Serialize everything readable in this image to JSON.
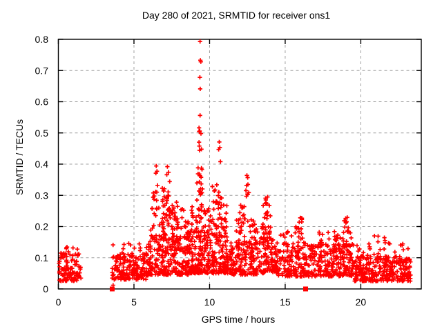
{
  "figure": {
    "background": "#ffffff"
  },
  "chart_data": {
    "type": "scatter",
    "title": "Day 280 of 2021, SRMTID for receiver ons1",
    "xlabel": "GPS time / hours",
    "ylabel": "SRMTID / TECUs",
    "xlim": [
      0,
      24
    ],
    "ylim": [
      0,
      0.8
    ],
    "xticks": [
      0,
      5,
      10,
      15,
      20
    ],
    "xtick_labels": [
      "0",
      "5",
      "10",
      "15",
      "20"
    ],
    "yticks": [
      0,
      0.1,
      0.2,
      0.3,
      0.4,
      0.5,
      0.6,
      0.7,
      0.8
    ],
    "ytick_labels": [
      "0",
      "0.1",
      "0.2",
      "0.3",
      "0.4",
      "0.5",
      "0.6",
      "0.7",
      "0.8"
    ],
    "grid": true,
    "grid_style": "dashed",
    "legend": "none",
    "marker": "plus",
    "marker_color": "#ff0000",
    "grid_color": "#a0a0a0",
    "axis_color": "#000000",
    "data_x_range": [
      0,
      23.3
    ],
    "data_gap_x": [
      1.55,
      3.55
    ],
    "notable_points": [
      [
        9.37,
        0.793
      ],
      [
        9.39,
        0.733
      ],
      [
        9.42,
        0.728
      ],
      [
        9.36,
        0.678
      ],
      [
        9.38,
        0.641
      ],
      [
        9.37,
        0.556
      ],
      [
        9.35,
        0.506
      ],
      [
        9.43,
        0.498
      ],
      [
        9.32,
        0.458
      ],
      [
        10.64,
        0.471
      ],
      [
        10.68,
        0.453
      ],
      [
        10.6,
        0.447
      ],
      [
        10.72,
        0.408
      ],
      [
        6.47,
        0.394
      ],
      [
        6.52,
        0.377
      ],
      [
        6.45,
        0.371
      ],
      [
        6.56,
        0.332
      ],
      [
        7.21,
        0.392
      ],
      [
        7.29,
        0.374
      ],
      [
        7.17,
        0.366
      ],
      [
        7.36,
        0.344
      ],
      [
        7.26,
        0.311
      ],
      [
        12.47,
        0.364
      ],
      [
        12.52,
        0.357
      ],
      [
        12.44,
        0.331
      ],
      [
        12.5,
        0.304
      ],
      [
        13.72,
        0.285
      ],
      [
        13.78,
        0.272
      ],
      [
        3.62,
        0.012
      ],
      [
        16.0,
        0.228
      ],
      [
        15.93,
        0.214
      ],
      [
        19.0,
        0.226
      ],
      [
        18.94,
        0.198
      ],
      [
        21.6,
        0.155
      ]
    ],
    "zero_square_markers_x": [
      3.56,
      16.35
    ],
    "dense_bands": [
      {
        "x0": 0.02,
        "x1": 1.55,
        "y0": 0.025,
        "y1": 0.115,
        "n": 110,
        "bias": 1.6
      },
      {
        "x0": 0.15,
        "x1": 1.35,
        "y0": 0.105,
        "y1": 0.138,
        "n": 8,
        "bias": 1.0
      },
      {
        "x0": 3.55,
        "x1": 5.95,
        "y0": 0.03,
        "y1": 0.115,
        "n": 170,
        "bias": 1.5
      },
      {
        "x0": 3.6,
        "x1": 5.85,
        "y0": 0.105,
        "y1": 0.148,
        "n": 14,
        "bias": 1.0
      },
      {
        "x0": 5.95,
        "x1": 8.65,
        "y0": 0.045,
        "y1": 0.175,
        "n": 240,
        "bias": 1.7
      },
      {
        "x0": 6.1,
        "x1": 8.6,
        "y0": 0.16,
        "y1": 0.26,
        "n": 60,
        "bias": 1.3
      },
      {
        "x0": 6.15,
        "x1": 6.6,
        "y0": 0.25,
        "y1": 0.315,
        "n": 10,
        "bias": 1.0
      },
      {
        "x0": 6.85,
        "x1": 7.35,
        "y0": 0.2,
        "y1": 0.335,
        "n": 22,
        "bias": 1.0
      },
      {
        "x0": 7.5,
        "x1": 7.9,
        "y0": 0.15,
        "y1": 0.3,
        "n": 20,
        "bias": 1.2
      },
      {
        "x0": 8.3,
        "x1": 8.65,
        "y0": 0.13,
        "y1": 0.22,
        "n": 14,
        "bias": 1.2
      },
      {
        "x0": 8.65,
        "x1": 11.25,
        "y0": 0.05,
        "y1": 0.19,
        "n": 280,
        "bias": 1.6
      },
      {
        "x0": 8.8,
        "x1": 11.15,
        "y0": 0.18,
        "y1": 0.27,
        "n": 60,
        "bias": 1.3
      },
      {
        "x0": 9.15,
        "x1": 9.55,
        "y0": 0.24,
        "y1": 0.4,
        "n": 24,
        "bias": 1.0
      },
      {
        "x0": 9.3,
        "x1": 9.5,
        "y0": 0.4,
        "y1": 0.52,
        "n": 5,
        "bias": 1.0
      },
      {
        "x0": 10.15,
        "x1": 10.5,
        "y0": 0.27,
        "y1": 0.335,
        "n": 9,
        "bias": 1.0
      },
      {
        "x0": 10.55,
        "x1": 10.8,
        "y0": 0.21,
        "y1": 0.33,
        "n": 10,
        "bias": 1.0
      },
      {
        "x0": 11.3,
        "x1": 13.25,
        "y0": 0.045,
        "y1": 0.15,
        "n": 160,
        "bias": 1.5
      },
      {
        "x0": 11.75,
        "x1": 13.2,
        "y0": 0.14,
        "y1": 0.225,
        "n": 40,
        "bias": 1.2
      },
      {
        "x0": 12.0,
        "x1": 12.3,
        "y0": 0.23,
        "y1": 0.31,
        "n": 7,
        "bias": 1.0
      },
      {
        "x0": 12.4,
        "x1": 12.62,
        "y0": 0.29,
        "y1": 0.345,
        "n": 5,
        "bias": 1.0
      },
      {
        "x0": 13.3,
        "x1": 14.45,
        "y0": 0.05,
        "y1": 0.17,
        "n": 110,
        "bias": 1.5
      },
      {
        "x0": 13.45,
        "x1": 14.05,
        "y0": 0.16,
        "y1": 0.27,
        "n": 28,
        "bias": 1.1
      },
      {
        "x0": 13.6,
        "x1": 13.85,
        "y0": 0.26,
        "y1": 0.295,
        "n": 4,
        "bias": 1.0
      },
      {
        "x0": 14.45,
        "x1": 16.7,
        "y0": 0.04,
        "y1": 0.15,
        "n": 160,
        "bias": 1.6
      },
      {
        "x0": 14.6,
        "x1": 16.5,
        "y0": 0.14,
        "y1": 0.2,
        "n": 20,
        "bias": 1.1
      },
      {
        "x0": 15.75,
        "x1": 16.15,
        "y0": 0.19,
        "y1": 0.235,
        "n": 9,
        "bias": 1.0
      },
      {
        "x0": 16.7,
        "x1": 19.55,
        "y0": 0.04,
        "y1": 0.145,
        "n": 220,
        "bias": 1.6
      },
      {
        "x0": 16.9,
        "x1": 19.4,
        "y0": 0.135,
        "y1": 0.185,
        "n": 32,
        "bias": 1.1
      },
      {
        "x0": 18.85,
        "x1": 19.2,
        "y0": 0.18,
        "y1": 0.23,
        "n": 8,
        "bias": 1.0
      },
      {
        "x0": 19.55,
        "x1": 23.3,
        "y0": 0.025,
        "y1": 0.105,
        "n": 290,
        "bias": 1.5
      },
      {
        "x0": 19.7,
        "x1": 23.25,
        "y0": 0.1,
        "y1": 0.145,
        "n": 28,
        "bias": 1.2
      },
      {
        "x0": 20.6,
        "x1": 22.8,
        "y0": 0.14,
        "y1": 0.17,
        "n": 6,
        "bias": 1.0
      }
    ],
    "prng_seed": 20211007
  }
}
